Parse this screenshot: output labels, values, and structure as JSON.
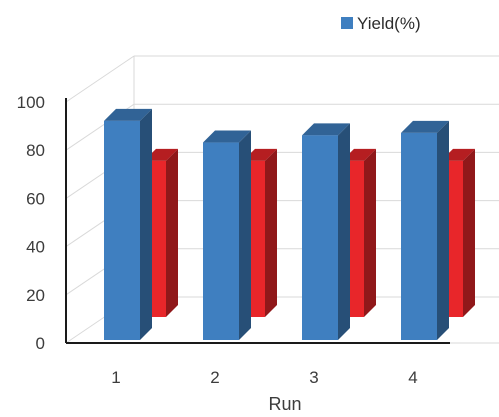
{
  "chart_data": {
    "type": "bar",
    "style": "3d-clustered-column",
    "categories": [
      "1",
      "2",
      "3",
      "4"
    ],
    "series": [
      {
        "name": "Yield(%)",
        "values": [
          93,
          84,
          87,
          88
        ],
        "color": "#3f7fc0"
      },
      {
        "name": "",
        "values": [
          88,
          88,
          88,
          88
        ],
        "color": "#e8262a"
      }
    ],
    "xlabel": "Run",
    "ylabel": "",
    "ylim": [
      0,
      100
    ],
    "yticks": [
      "0",
      "20",
      "40",
      "60",
      "80",
      "100"
    ],
    "grid": true,
    "legend_position": "top-right"
  }
}
